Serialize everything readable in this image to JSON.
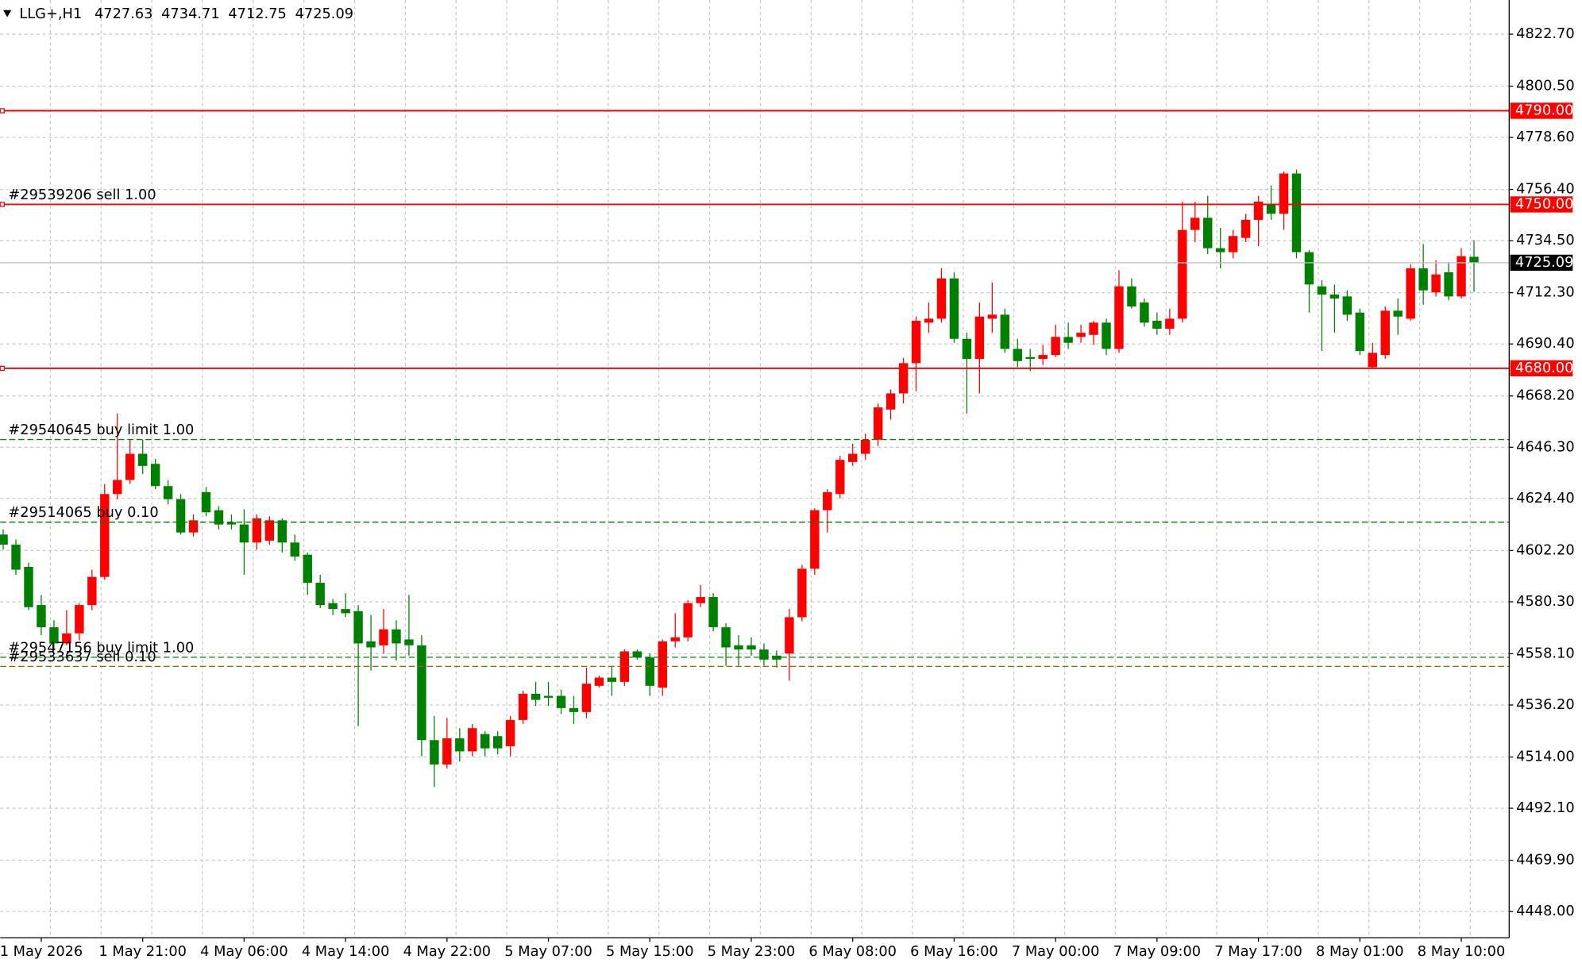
{
  "chart_data": {
    "type": "candlestick",
    "symbol": "LLG+,H1",
    "categories": [
      null,
      null,
      null,
      "1 May 2026",
      null,
      null,
      null,
      null,
      null,
      null,
      null,
      "1 May 21:00",
      null,
      null,
      null,
      null,
      null,
      null,
      null,
      "4 May 06:00",
      null,
      null,
      null,
      null,
      null,
      null,
      null,
      "4 May 14:00",
      null,
      null,
      null,
      null,
      null,
      null,
      null,
      "4 May 22:00",
      null,
      null,
      null,
      null,
      null,
      null,
      null,
      "5 May 07:00",
      null,
      null,
      null,
      null,
      null,
      null,
      null,
      "5 May 15:00",
      null,
      null,
      null,
      null,
      null,
      null,
      null,
      "5 May 23:00",
      null,
      null,
      null,
      null,
      null,
      null,
      null,
      "6 May 08:00",
      null,
      null,
      null,
      null,
      null,
      null,
      null,
      "6 May 16:00",
      null,
      null,
      null,
      null,
      null,
      null,
      null,
      "7 May 00:00",
      null,
      null,
      null,
      null,
      null,
      null,
      null,
      "7 May 09:00",
      null,
      null,
      null,
      null,
      null,
      null,
      null,
      "7 May 17:00",
      null,
      null,
      null,
      null,
      null,
      null,
      null,
      "8 May 01:00",
      null,
      null,
      null,
      null,
      null,
      null,
      null,
      "8 May 10:00",
      null
    ],
    "open": [
      4609.0,
      4604.7,
      4595.2,
      4578.9,
      4569.4,
      4562.5,
      4566.8,
      4578.9,
      4590.9,
      4626.3,
      4632.3,
      4643.5,
      4639.2,
      4629.7,
      4624.1,
      4609.9,
      4627.1,
      4619.4,
      4614.2,
      4613.3,
      4605.6,
      4606.4,
      4615.1,
      4605.6,
      4600.4,
      4588.4,
      4579.7,
      4577.2,
      4576.3,
      4563.4,
      4561.7,
      4568.5,
      4564.2,
      4561.7,
      4521.2,
      4510.8,
      4522.0,
      4516.4,
      4523.8,
      4522.9,
      4518.6,
      4529.8,
      4541.0,
      4540.1,
      4540.1,
      4534.9,
      4533.2,
      4544.4,
      4547.9,
      4546.1,
      4559.1,
      4556.5,
      4543.6,
      4563.4,
      4565.1,
      4579.7,
      4582.3,
      4569.4,
      4561.7,
      4561.7,
      4559.9,
      4557.3,
      4558.2,
      4573.7,
      4594.4,
      4619.4,
      4626.3,
      4640.0,
      4643.5,
      4649.5,
      4662.4,
      4669.3,
      4682.2,
      4699.5,
      4701.2,
      4718.4,
      4692.6,
      4684.0,
      4701.2,
      4702.9,
      4688.3,
      4684.8,
      4684.0,
      4685.7,
      4693.4,
      4693.4,
      4694.3,
      4699.5,
      4688.3,
      4715.0,
      4708.1,
      4700.3,
      4696.9,
      4701.2,
      4739.1,
      4744.3,
      4731.3,
      4729.6,
      4735.7,
      4743.4,
      4750.3,
      4746.0,
      4763.2,
      4729.6,
      4715.0,
      4711.5,
      4710.7,
      4703.8,
      4680.5,
      4685.7,
      4704.6,
      4701.2,
      4722.7,
      4712.4,
      4721.0,
      4710.7,
      4727.63
    ],
    "high": [
      4611.2,
      4606.9,
      4597.0,
      4583.2,
      4572.4,
      4576.7,
      4579.7,
      4594.0,
      4630.6,
      4660.7,
      4649.5,
      4649.5,
      4641.3,
      4632.3,
      4626.3,
      4617.6,
      4629.3,
      4621.1,
      4617.6,
      4619.8,
      4617.6,
      4616.8,
      4615.9,
      4609.0,
      4601.3,
      4591.8,
      4581.5,
      4584.0,
      4578.9,
      4574.6,
      4577.2,
      4572.4,
      4583.2,
      4566.0,
      4531.5,
      4530.6,
      4526.3,
      4528.1,
      4525.0,
      4525.0,
      4531.5,
      4542.3,
      4546.1,
      4546.1,
      4542.7,
      4540.1,
      4552.2,
      4548.7,
      4553.0,
      4559.9,
      4559.9,
      4558.2,
      4564.2,
      4575.4,
      4581.0,
      4587.5,
      4584.0,
      4571.1,
      4566.0,
      4565.1,
      4562.5,
      4559.5,
      4577.2,
      4596.1,
      4620.2,
      4628.4,
      4642.6,
      4647.8,
      4652.1,
      4665.0,
      4671.0,
      4684.4,
      4702.1,
      4708.1,
      4722.7,
      4721.0,
      4695.2,
      4708.1,
      4716.7,
      4705.5,
      4692.6,
      4688.3,
      4690.0,
      4698.6,
      4699.5,
      4698.6,
      4700.3,
      4701.2,
      4721.9,
      4718.4,
      4709.8,
      4703.8,
      4705.5,
      4751.2,
      4751.2,
      4753.7,
      4740.0,
      4739.1,
      4746.0,
      4753.7,
      4758.1,
      4764.1,
      4764.9,
      4730.5,
      4717.6,
      4715.8,
      4713.3,
      4705.5,
      4690.9,
      4706.4,
      4709.8,
      4724.5,
      4733.1,
      4726.2,
      4725.3,
      4731.3,
      4734.71
    ],
    "low": [
      4602.6,
      4591.8,
      4576.7,
      4566.0,
      4559.5,
      4561.7,
      4563.8,
      4576.7,
      4589.6,
      4624.1,
      4630.6,
      4634.9,
      4628.4,
      4621.9,
      4609.0,
      4608.2,
      4616.8,
      4611.2,
      4611.2,
      4591.8,
      4602.6,
      4604.7,
      4601.3,
      4597.8,
      4583.2,
      4577.6,
      4574.6,
      4573.7,
      4527.2,
      4550.9,
      4558.2,
      4555.2,
      4557.3,
      4514.3,
      4501.3,
      4509.1,
      4512.1,
      4514.3,
      4514.3,
      4515.1,
      4514.3,
      4528.1,
      4535.8,
      4535.8,
      4532.4,
      4528.1,
      4530.6,
      4543.6,
      4540.1,
      4544.4,
      4555.6,
      4540.1,
      4540.1,
      4560.8,
      4563.4,
      4578.0,
      4567.7,
      4553.0,
      4553.0,
      4557.3,
      4553.0,
      4552.2,
      4546.6,
      4572.0,
      4591.8,
      4609.9,
      4624.5,
      4638.3,
      4640.9,
      4646.9,
      4658.1,
      4665.0,
      4670.2,
      4695.2,
      4699.5,
      4690.9,
      4660.7,
      4669.3,
      4695.2,
      4686.6,
      4680.5,
      4678.8,
      4681.4,
      4684.8,
      4688.3,
      4690.9,
      4690.0,
      4685.7,
      4686.6,
      4705.5,
      4697.8,
      4694.3,
      4694.3,
      4699.5,
      4733.9,
      4728.8,
      4722.7,
      4727.0,
      4733.9,
      4732.2,
      4743.4,
      4739.1,
      4727.0,
      4703.8,
      4687.4,
      4695.2,
      4700.3,
      4685.7,
      4679.7,
      4684.0,
      4694.3,
      4700.3,
      4707.2,
      4710.7,
      4709.0,
      4709.8,
      4712.75
    ],
    "close": [
      4604.7,
      4594.0,
      4578.0,
      4569.4,
      4562.5,
      4566.8,
      4578.9,
      4590.9,
      4626.3,
      4632.3,
      4643.5,
      4638.3,
      4629.7,
      4624.1,
      4609.9,
      4615.1,
      4618.5,
      4613.3,
      4613.3,
      4605.6,
      4615.9,
      4615.1,
      4605.6,
      4599.6,
      4588.4,
      4578.9,
      4577.2,
      4575.4,
      4562.5,
      4560.8,
      4568.5,
      4562.5,
      4561.7,
      4521.2,
      4510.8,
      4522.0,
      4516.4,
      4526.3,
      4517.7,
      4517.7,
      4529.8,
      4541.0,
      4538.4,
      4539.3,
      4534.9,
      4533.2,
      4545.3,
      4547.9,
      4546.1,
      4559.1,
      4556.5,
      4544.4,
      4563.4,
      4565.1,
      4579.7,
      4582.3,
      4569.4,
      4560.8,
      4559.9,
      4559.9,
      4555.6,
      4555.6,
      4573.7,
      4594.4,
      4619.4,
      4627.1,
      4640.9,
      4643.5,
      4649.5,
      4663.3,
      4669.3,
      4682.2,
      4700.3,
      4701.2,
      4718.4,
      4692.6,
      4684.0,
      4702.1,
      4702.9,
      4688.3,
      4683.1,
      4684.0,
      4685.7,
      4693.4,
      4690.9,
      4695.2,
      4699.5,
      4688.3,
      4715.0,
      4706.4,
      4699.5,
      4696.9,
      4701.2,
      4739.1,
      4744.3,
      4731.3,
      4729.6,
      4736.5,
      4743.4,
      4751.2,
      4746.0,
      4763.2,
      4729.6,
      4715.8,
      4711.5,
      4709.8,
      4702.9,
      4687.4,
      4686.6,
      4704.6,
      4702.1,
      4722.7,
      4713.3,
      4720.1,
      4710.7,
      4727.9,
      4725.09
    ],
    "up_color": "#ff0000",
    "down_color": "#008000",
    "ylim": [
      4436.8,
      4837.3
    ],
    "yticks": [
      {
        "value": 4822.7,
        "label": "4822.70"
      },
      {
        "value": 4800.5,
        "label": "4800.50"
      },
      {
        "value": 4778.6,
        "label": "4778.60"
      },
      {
        "value": 4756.4,
        "label": "4756.40"
      },
      {
        "value": 4734.5,
        "label": "4734.50"
      },
      {
        "value": 4712.3,
        "label": "4712.30"
      },
      {
        "value": 4690.4,
        "label": "4690.40"
      },
      {
        "value": 4668.2,
        "label": "4668.20"
      },
      {
        "value": 4646.3,
        "label": "4646.30"
      },
      {
        "value": 4624.4,
        "label": "4624.40"
      },
      {
        "value": 4602.2,
        "label": "4602.20"
      },
      {
        "value": 4580.3,
        "label": "4580.30"
      },
      {
        "value": 4558.1,
        "label": "4558.10"
      },
      {
        "value": 4536.2,
        "label": "4536.20"
      },
      {
        "value": 4514,
        "label": "4514.00"
      },
      {
        "value": 4492.1,
        "label": "4492.10"
      },
      {
        "value": 4469.9,
        "label": "4469.90"
      },
      {
        "value": 4448,
        "label": "4448.00"
      }
    ],
    "grid": true,
    "hlines": [
      {
        "value": 4790,
        "label": "4790.00"
      },
      {
        "value": 4750,
        "label": "4750.00"
      },
      {
        "value": 4680,
        "label": "4680.00"
      }
    ],
    "hline_color": "#ff0000",
    "orders": [
      {
        "label": "#29539206 sell 1.00",
        "price": 4750,
        "color": "#ff0000"
      },
      {
        "label": "#29540645 buy limit 1.00",
        "price": 4649.6,
        "color": "#008000"
      },
      {
        "label": "#29514065 buy 0.10",
        "price": 4614.3,
        "color": "#008000"
      },
      {
        "label": "#29547156 buy limit 1.00",
        "price": 4556.6,
        "color": "#008000"
      },
      {
        "label": "#29533637 sell 0.10",
        "price": 4552.7,
        "color": "#a06000"
      }
    ]
  }
}
